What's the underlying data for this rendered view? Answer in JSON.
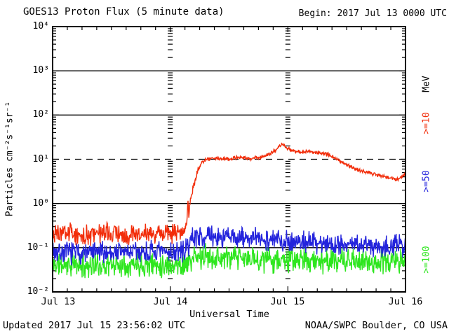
{
  "header": {
    "title": "GOES13 Proton Flux (5 minute data)",
    "begin_label": "Begin: 2017 Jul 13 0000 UTC"
  },
  "footer": {
    "updated_label": "Updated 2017 Jul 15 23:56:02 UTC",
    "source_label": "NOAA/SWPC Boulder, CO USA"
  },
  "chart_data": {
    "type": "line",
    "title": "GOES13 Proton Flux (5 minute data)",
    "begin_annotation": "Begin: 2017 Jul 13 0000 UTC",
    "xlabel": "Universal Time",
    "ylabel": "Particles cm⁻²s⁻¹sr⁻¹",
    "x_range_days": 3,
    "x_tick_labels": [
      "Jul 13",
      "Jul 14",
      "Jul 15",
      "Jul 16"
    ],
    "x_minor_tick_hours": 3,
    "y_axis": {
      "scale": "log",
      "min": 0.01,
      "max": 10000
    },
    "y_tick_labels": [
      "10⁴",
      "10³",
      "10²",
      "10¹",
      "10⁰",
      "10⁻¹",
      "10⁻²"
    ],
    "y_tick_exponents": [
      4,
      3,
      2,
      1,
      0,
      -1,
      -2
    ],
    "gridlines_horizontal": [
      {
        "value": 1000,
        "style": "solid"
      },
      {
        "value": 100,
        "style": "solid"
      },
      {
        "value": 10,
        "style": "dashed"
      },
      {
        "value": 1,
        "style": "solid"
      },
      {
        "value": 0.1,
        "style": "solid"
      }
    ],
    "day_tick_columns_days": [
      1,
      2
    ],
    "grid": "partial",
    "legend_position": "right",
    "right_axis_unit_label": "MeV",
    "frame_color": "#000000",
    "series": [
      {
        "name": "protons_gte_10_MeV",
        "label": ">=10",
        "color": "#f22d0a",
        "points_per_day": 288,
        "noise_dex_segments": [
          {
            "until_x": 1.142,
            "dex": 0.28
          },
          {
            "until_x": 1.24,
            "dex": 0.1
          },
          {
            "until_x": 3.01,
            "dex": 0.05
          }
        ],
        "trend_keypoints": [
          [
            0.0,
            0.21
          ],
          [
            0.25,
            0.19
          ],
          [
            0.5,
            0.21
          ],
          [
            0.75,
            0.2
          ],
          [
            1.0,
            0.21
          ],
          [
            1.1,
            0.24
          ],
          [
            1.14,
            0.3
          ],
          [
            1.15,
            1.3
          ],
          [
            1.158,
            0.5
          ],
          [
            1.172,
            1.2
          ],
          [
            1.2,
            2.6
          ],
          [
            1.23,
            5.0
          ],
          [
            1.265,
            8.3
          ],
          [
            1.31,
            9.8
          ],
          [
            1.38,
            10.8
          ],
          [
            1.45,
            10.5
          ],
          [
            1.52,
            10.0
          ],
          [
            1.58,
            11.2
          ],
          [
            1.64,
            10.6
          ],
          [
            1.68,
            9.9
          ],
          [
            1.73,
            10.8
          ],
          [
            1.79,
            11.6
          ],
          [
            1.84,
            13.0
          ],
          [
            1.89,
            16.0
          ],
          [
            1.93,
            19.5
          ],
          [
            1.955,
            21.5
          ],
          [
            1.98,
            19.0
          ],
          [
            2.02,
            16.5
          ],
          [
            2.07,
            15.0
          ],
          [
            2.12,
            14.2
          ],
          [
            2.18,
            15.0
          ],
          [
            2.25,
            14.0
          ],
          [
            2.32,
            13.2
          ],
          [
            2.38,
            11.5
          ],
          [
            2.44,
            9.2
          ],
          [
            2.49,
            7.8
          ],
          [
            2.56,
            6.3
          ],
          [
            2.63,
            5.4
          ],
          [
            2.72,
            4.7
          ],
          [
            2.8,
            4.2
          ],
          [
            2.87,
            3.7
          ],
          [
            2.92,
            3.4
          ],
          [
            2.96,
            3.9
          ],
          [
            2.997,
            4.7
          ]
        ]
      },
      {
        "name": "protons_gte_50_MeV",
        "label": ">=50",
        "color": "#2323dc",
        "points_per_day": 288,
        "noise_dex_segments": [
          {
            "until_x": 3.01,
            "dex": 0.3
          }
        ],
        "trend_keypoints": [
          [
            0.0,
            0.08
          ],
          [
            0.3,
            0.075
          ],
          [
            0.6,
            0.082
          ],
          [
            0.9,
            0.077
          ],
          [
            1.05,
            0.08
          ],
          [
            1.14,
            0.085
          ],
          [
            1.17,
            0.15
          ],
          [
            1.22,
            0.19
          ],
          [
            1.3,
            0.175
          ],
          [
            1.45,
            0.17
          ],
          [
            1.6,
            0.165
          ],
          [
            1.75,
            0.16
          ],
          [
            1.9,
            0.15
          ],
          [
            2.05,
            0.14
          ],
          [
            2.2,
            0.135
          ],
          [
            2.35,
            0.125
          ],
          [
            2.5,
            0.12
          ],
          [
            2.65,
            0.115
          ],
          [
            2.8,
            0.11
          ],
          [
            2.997,
            0.115
          ]
        ]
      },
      {
        "name": "protons_gte_100_MeV",
        "label": ">=100",
        "color": "#2de61e",
        "points_per_day": 288,
        "noise_dex_segments": [
          {
            "until_x": 3.01,
            "dex": 0.33
          }
        ],
        "trend_keypoints": [
          [
            0.0,
            0.042
          ],
          [
            0.35,
            0.04
          ],
          [
            0.7,
            0.043
          ],
          [
            1.0,
            0.041
          ],
          [
            1.14,
            0.042
          ],
          [
            1.2,
            0.058
          ],
          [
            1.3,
            0.062
          ],
          [
            1.5,
            0.058
          ],
          [
            1.75,
            0.055
          ],
          [
            2.0,
            0.053
          ],
          [
            2.25,
            0.051
          ],
          [
            2.5,
            0.049
          ],
          [
            2.75,
            0.047
          ],
          [
            2.997,
            0.05
          ]
        ]
      }
    ]
  }
}
